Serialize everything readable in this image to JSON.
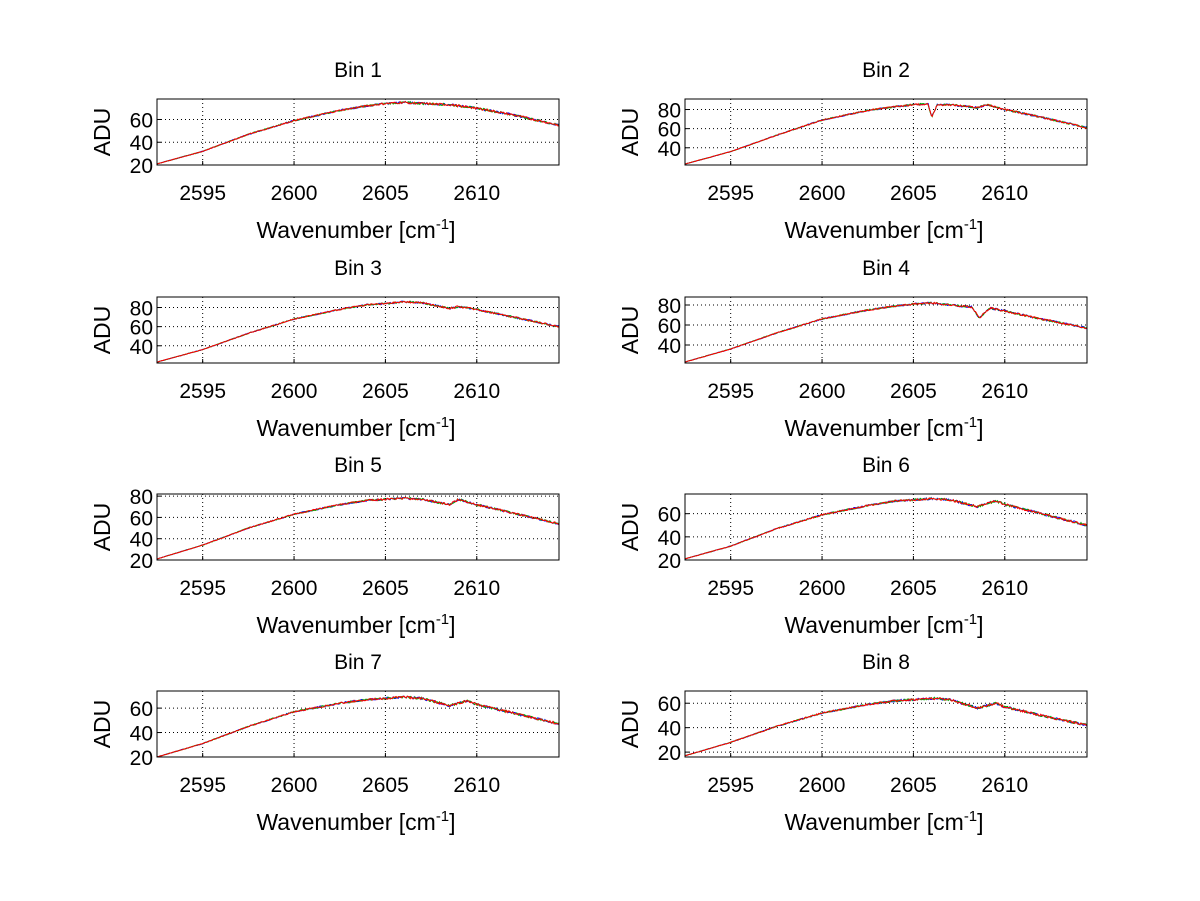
{
  "chart_data": [
    {
      "type": "line",
      "title": "Bin 1",
      "xlabel": "Wavenumber [cm",
      "xlabel_sup": "-1",
      "xlabel_end": "]",
      "ylabel": "ADU",
      "xlim": [
        2592.5,
        2614.5
      ],
      "ylim": [
        20,
        78
      ],
      "xticks": [
        2595,
        2600,
        2605,
        2610
      ],
      "yticks": [
        20,
        40,
        60
      ],
      "grid": true,
      "x": [
        2592.5,
        2595,
        2597.5,
        2600,
        2602.5,
        2604,
        2605,
        2606,
        2607,
        2608.5,
        2610,
        2612,
        2614.5
      ],
      "y": [
        21,
        32,
        47,
        59,
        68,
        72,
        74,
        75,
        74,
        73,
        70,
        64,
        55
      ],
      "series_colors": [
        "#0000ff",
        "#00aa00",
        "#ff0000"
      ]
    },
    {
      "type": "line",
      "title": "Bin 2",
      "xlabel": "Wavenumber [cm",
      "xlabel_sup": "-1",
      "xlabel_end": "]",
      "ylabel": "ADU",
      "xlim": [
        2592.5,
        2614.5
      ],
      "ylim": [
        22,
        91
      ],
      "xticks": [
        2595,
        2600,
        2605,
        2610
      ],
      "yticks": [
        40,
        60,
        80
      ],
      "grid": true,
      "x": [
        2592.5,
        2595,
        2597.5,
        2600,
        2602.5,
        2604,
        2605,
        2605.8,
        2606,
        2606.3,
        2607,
        2608.5,
        2609,
        2610,
        2612,
        2614.5
      ],
      "y": [
        23,
        36,
        53,
        69,
        79,
        83,
        85,
        86,
        72,
        85,
        85,
        82,
        85,
        80,
        72,
        61
      ],
      "series_colors": [
        "#0000ff",
        "#00aa00",
        "#ff0000"
      ]
    },
    {
      "type": "line",
      "title": "Bin 3",
      "xlabel": "Wavenumber [cm",
      "xlabel_sup": "-1",
      "xlabel_end": "]",
      "ylabel": "ADU",
      "xlim": [
        2592.5,
        2614.5
      ],
      "ylim": [
        22,
        91
      ],
      "xticks": [
        2595,
        2600,
        2605,
        2610
      ],
      "yticks": [
        40,
        60,
        80
      ],
      "grid": true,
      "x": [
        2592.5,
        2595,
        2597.5,
        2600,
        2602.5,
        2604,
        2605,
        2606,
        2607,
        2608.5,
        2609,
        2610,
        2612,
        2614.5
      ],
      "y": [
        23,
        36,
        53,
        68,
        78,
        83,
        84,
        86,
        85,
        79,
        81,
        78,
        70,
        60
      ],
      "series_colors": [
        "#0000ff",
        "#00aa00",
        "#ff0000"
      ]
    },
    {
      "type": "line",
      "title": "Bin 4",
      "xlabel": "Wavenumber [cm",
      "xlabel_sup": "-1",
      "xlabel_end": "]",
      "ylabel": "ADU",
      "xlim": [
        2592.5,
        2614.5
      ],
      "ylim": [
        22,
        88
      ],
      "xticks": [
        2595,
        2600,
        2605,
        2610
      ],
      "yticks": [
        40,
        60,
        80
      ],
      "grid": true,
      "x": [
        2592.5,
        2595,
        2597.5,
        2600,
        2602.5,
        2604,
        2605,
        2606,
        2607,
        2608.2,
        2608.6,
        2609.2,
        2610,
        2612,
        2614.5
      ],
      "y": [
        23,
        36,
        52,
        66,
        75,
        79,
        81,
        82,
        80,
        78,
        67,
        77,
        74,
        66,
        57
      ],
      "series_colors": [
        "#0000ff",
        "#00aa00",
        "#ff0000"
      ]
    },
    {
      "type": "line",
      "title": "Bin 5",
      "xlabel": "Wavenumber [cm",
      "xlabel_sup": "-1",
      "xlabel_end": "]",
      "ylabel": "ADU",
      "xlim": [
        2592.5,
        2614.5
      ],
      "ylim": [
        20,
        82
      ],
      "xticks": [
        2595,
        2600,
        2605,
        2610
      ],
      "yticks": [
        20,
        40,
        60,
        80
      ],
      "grid": true,
      "x": [
        2592.5,
        2595,
        2597.5,
        2600,
        2602.5,
        2604,
        2605,
        2606,
        2607,
        2608.5,
        2609,
        2610,
        2612,
        2614.5
      ],
      "y": [
        21,
        34,
        50,
        63,
        72,
        76,
        77,
        78,
        77,
        72,
        77,
        72,
        64,
        54
      ],
      "series_colors": [
        "#0000ff",
        "#00aa00",
        "#ff0000"
      ]
    },
    {
      "type": "line",
      "title": "Bin 6",
      "xlabel": "Wavenumber [cm",
      "xlabel_sup": "-1",
      "xlabel_end": "]",
      "ylabel": "ADU",
      "xlim": [
        2592.5,
        2614.5
      ],
      "ylim": [
        20,
        77
      ],
      "xticks": [
        2595,
        2600,
        2605,
        2610
      ],
      "yticks": [
        20,
        40,
        60
      ],
      "grid": true,
      "x": [
        2592.5,
        2595,
        2597.5,
        2600,
        2602.5,
        2604,
        2605,
        2606,
        2607,
        2608.5,
        2609.5,
        2610,
        2612,
        2614.5
      ],
      "y": [
        21,
        32,
        47,
        59,
        67,
        71,
        72,
        73,
        72,
        66,
        71,
        68,
        60,
        50
      ],
      "series_colors": [
        "#0000ff",
        "#00aa00",
        "#ff0000"
      ]
    },
    {
      "type": "line",
      "title": "Bin 7",
      "xlabel": "Wavenumber [cm",
      "xlabel_sup": "-1",
      "xlabel_end": "]",
      "ylabel": "ADU",
      "xlim": [
        2592.5,
        2614.5
      ],
      "ylim": [
        20,
        74
      ],
      "xticks": [
        2595,
        2600,
        2605,
        2610
      ],
      "yticks": [
        20,
        40,
        60
      ],
      "grid": true,
      "x": [
        2592.5,
        2595,
        2597.5,
        2600,
        2602.5,
        2604,
        2605,
        2606,
        2607,
        2608.5,
        2609.5,
        2610,
        2612,
        2614.5
      ],
      "y": [
        20,
        31,
        45,
        57,
        64,
        67,
        68,
        69,
        68,
        62,
        66,
        63,
        56,
        47
      ],
      "series_colors": [
        "#0000ff",
        "#00aa00",
        "#ff0000"
      ]
    },
    {
      "type": "line",
      "title": "Bin 8",
      "xlabel": "Wavenumber [cm",
      "xlabel_sup": "-1",
      "xlabel_end": "]",
      "ylabel": "ADU",
      "xlim": [
        2592.5,
        2614.5
      ],
      "ylim": [
        16,
        70
      ],
      "xticks": [
        2595,
        2600,
        2605,
        2610
      ],
      "yticks": [
        20,
        40,
        60
      ],
      "grid": true,
      "x": [
        2592.5,
        2595,
        2597.5,
        2600,
        2602.5,
        2604,
        2605,
        2606,
        2607,
        2608.5,
        2609.5,
        2610,
        2612,
        2614.5
      ],
      "y": [
        17,
        28,
        41,
        52,
        59,
        62,
        63,
        64,
        63,
        56,
        60,
        57,
        50,
        42
      ],
      "series_colors": [
        "#0000ff",
        "#00aa00",
        "#ff0000"
      ]
    }
  ]
}
